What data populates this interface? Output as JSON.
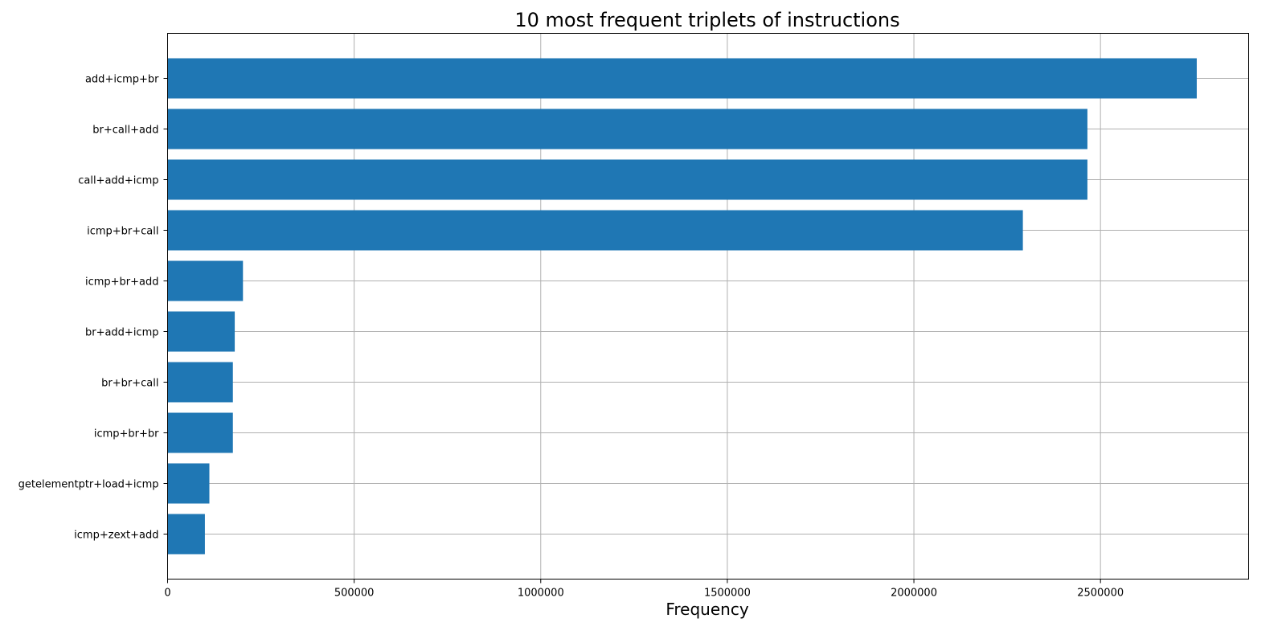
{
  "chart_data": {
    "type": "bar",
    "orientation": "horizontal",
    "title": "10 most frequent triplets of instructions",
    "xlabel": "Frequency",
    "ylabel": "",
    "categories": [
      "add+icmp+br",
      "br+call+add",
      "call+add+icmp",
      "icmp+br+call",
      "icmp+br+add",
      "br+add+icmp",
      "br+br+call",
      "icmp+br+br",
      "getelementptr+load+icmp",
      "icmp+zext+add"
    ],
    "values": [
      2758000,
      2465000,
      2465000,
      2292000,
      202000,
      180000,
      175000,
      175000,
      112000,
      100000
    ],
    "xlim": [
      0,
      2897000
    ],
    "xticks": [
      0,
      500000,
      1000000,
      1500000,
      2000000,
      2500000
    ],
    "xtick_labels": [
      "0",
      "500000",
      "1000000",
      "1500000",
      "2000000",
      "2500000"
    ],
    "grid": true,
    "bar_color": "#1f77b4"
  }
}
